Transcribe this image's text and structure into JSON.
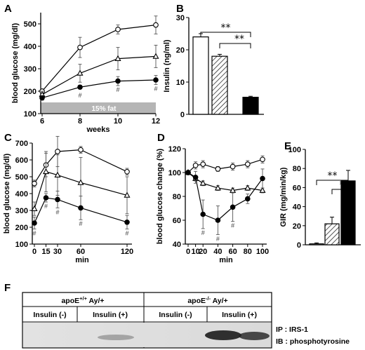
{
  "panel_labels": {
    "A": "A",
    "B": "B",
    "C": "C",
    "D": "D",
    "E": "E",
    "F": "F"
  },
  "chart_data": [
    {
      "id": "A",
      "type": "line",
      "xlabel": "weeks",
      "ylabel": "blood glucose (mg/dl)",
      "xlim": [
        6,
        12
      ],
      "ylim": [
        100,
        550
      ],
      "xticks": [
        6,
        8,
        10,
        12
      ],
      "yticks": [
        100,
        200,
        300,
        400,
        500
      ],
      "band_label": "15% fat",
      "band_range": [
        100,
        150
      ],
      "x": [
        6,
        8,
        10,
        12
      ],
      "series": [
        {
          "marker": "open-circle",
          "values": [
            200,
            395,
            475,
            495
          ],
          "errors": [
            10,
            45,
            20,
            40
          ],
          "hash": []
        },
        {
          "marker": "open-triangle",
          "values": [
            185,
            280,
            345,
            355
          ],
          "errors": [
            15,
            40,
            50,
            50
          ],
          "hash": []
        },
        {
          "marker": "filled-circle",
          "values": [
            170,
            218,
            245,
            250
          ],
          "errors": [
            10,
            8,
            20,
            20
          ],
          "hash": [
            "",
            "#",
            "#",
            "#"
          ]
        }
      ]
    },
    {
      "id": "B",
      "type": "bar",
      "ylabel": "Insulin (ng/ml)",
      "ylim": [
        0,
        30
      ],
      "yticks": [
        0,
        10,
        20,
        30
      ],
      "values": [
        24,
        18,
        5.3
      ],
      "errors": [
        1.0,
        0.6,
        0.3
      ],
      "fills": [
        "white",
        "hatched",
        "black"
      ],
      "significance": [
        "**",
        "**"
      ]
    },
    {
      "id": "C",
      "type": "line",
      "xlabel": "min",
      "ylabel": "blood glucose (mg/dl)",
      "xlim": [
        0,
        120
      ],
      "ylim": [
        100,
        700
      ],
      "xticks": [
        0,
        15,
        30,
        60,
        120
      ],
      "yticks": [
        100,
        200,
        300,
        400,
        500,
        600,
        700
      ],
      "x": [
        0,
        15,
        30,
        60,
        120
      ],
      "series": [
        {
          "marker": "open-circle",
          "values": [
            460,
            570,
            650,
            660,
            530
          ],
          "errors": [
            20,
            70,
            90,
            20,
            20
          ],
          "hash": []
        },
        {
          "marker": "open-triangle",
          "values": [
            310,
            530,
            510,
            465,
            390
          ],
          "errors": [
            40,
            120,
            120,
            150,
            110
          ],
          "hash": []
        },
        {
          "marker": "filled-circle",
          "values": [
            225,
            375,
            365,
            315,
            230
          ],
          "errors": [
            35,
            25,
            50,
            70,
            40
          ],
          "hash": [
            "#",
            "#",
            "#",
            "#",
            "#"
          ]
        }
      ]
    },
    {
      "id": "D",
      "type": "line",
      "xlabel": "min",
      "ylabel": "blood glucose change (%)",
      "xlim": [
        0,
        100
      ],
      "ylim": [
        40,
        120
      ],
      "xticks": [
        0,
        10,
        20,
        40,
        60,
        80,
        100
      ],
      "yticks": [
        40,
        60,
        80,
        100,
        120
      ],
      "x": [
        0,
        10,
        20,
        40,
        60,
        80,
        100
      ],
      "series": [
        {
          "marker": "open-circle",
          "values": [
            100,
            106,
            107,
            103,
            105,
            107,
            111
          ],
          "errors": [
            0,
            3,
            3,
            2,
            3,
            3,
            3
          ],
          "hash": []
        },
        {
          "marker": "open-triangle",
          "values": [
            100,
            95,
            91,
            87,
            85,
            87,
            85
          ],
          "errors": [
            0,
            2,
            2,
            2,
            2,
            2,
            2
          ],
          "hash": []
        },
        {
          "marker": "filled-circle",
          "values": [
            100,
            96,
            65,
            60,
            71,
            78,
            95
          ],
          "errors": [
            0,
            5,
            12,
            12,
            12,
            4,
            8
          ],
          "hash": [
            "",
            "",
            "#",
            "#",
            "#",
            "",
            ""
          ]
        }
      ]
    },
    {
      "id": "E",
      "type": "bar",
      "ylabel": "GIR (mg/min/kg)",
      "ylim": [
        0,
        100
      ],
      "yticks": [
        0,
        20,
        40,
        60,
        80,
        100
      ],
      "values": [
        1,
        22,
        67
      ],
      "errors": [
        1,
        7,
        11
      ],
      "fills": [
        "white",
        "hatched",
        "black"
      ],
      "significance": [
        "**",
        "**"
      ]
    }
  ],
  "blot": {
    "group_left": "apoE",
    "group_left_sup": "+/+",
    "group_left_suffix": " Ay/+",
    "group_right": "apoE",
    "group_right_sup": "-/-",
    "group_right_suffix": " Ay/+",
    "lane_labels": [
      "Insulin (-)",
      "Insulin (+)",
      "Insulin (-)",
      "Insulin (+)"
    ],
    "ip_label": "IP : IRS-1",
    "ib_label": "IB : phosphotyrosine"
  }
}
